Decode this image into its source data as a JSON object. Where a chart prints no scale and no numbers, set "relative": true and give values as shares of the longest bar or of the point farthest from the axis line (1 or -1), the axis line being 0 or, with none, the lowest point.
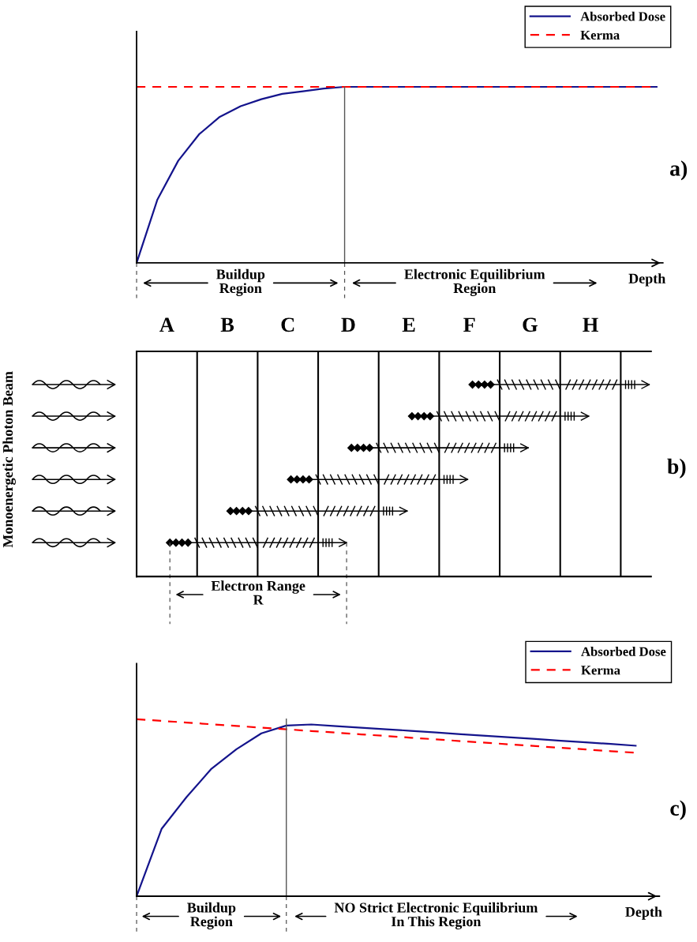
{
  "chart_data": [
    {
      "type": "line",
      "relative": true,
      "tick_labels": false,
      "xlabel": "Depth",
      "legend": "top right",
      "categories": [
        null,
        null,
        null,
        null,
        null,
        null,
        null,
        null,
        null,
        null,
        null,
        null,
        null,
        null,
        null,
        null,
        null,
        null,
        null,
        null,
        null,
        null,
        null,
        null,
        null,
        null
      ],
      "series": [
        {
          "name": "Absorbed Dose",
          "color": "#14148c",
          "line_style": "solid",
          "values": [
            0,
            0.36,
            0.58,
            0.73,
            0.83,
            0.89,
            0.93,
            0.96,
            0.975,
            0.99,
            1,
            1,
            1,
            1,
            1,
            1,
            1,
            1,
            1,
            1,
            1,
            1,
            1,
            1,
            1,
            1
          ]
        },
        {
          "name": "Kerma",
          "color": "#ff0000",
          "line_style": "dashed",
          "values": [
            1,
            1,
            1,
            1,
            1,
            1,
            1,
            1,
            1,
            1,
            1,
            1,
            1,
            1,
            1,
            1,
            1,
            1,
            1,
            1,
            1,
            1,
            1,
            1,
            1,
            1
          ]
        }
      ],
      "annotations": [
        "Buildup\nRegion",
        "Electronic Equilibrium\nRegion",
        "a)"
      ]
    },
    {
      "type": "other",
      "ylabel": "Monoenergetic Photon Beam",
      "categories": [
        "A",
        "B",
        "C",
        "D",
        "E",
        "F",
        "G",
        "H"
      ],
      "annotations": [
        "Electron Range\nR",
        "b)"
      ]
    },
    {
      "type": "line",
      "relative": true,
      "tick_labels": false,
      "xlabel": "Depth",
      "legend": "top right",
      "categories": [
        null,
        null,
        null,
        null,
        null,
        null,
        null,
        null,
        null,
        null,
        null,
        null,
        null,
        null,
        null,
        null,
        null,
        null,
        null,
        null,
        null
      ],
      "series": [
        {
          "name": "Absorbed Dose",
          "color": "#14148c",
          "line_style": "solid",
          "values": [
            0,
            0.38,
            0.56,
            0.72,
            0.83,
            0.92,
            0.964,
            0.97,
            0.961,
            0.952,
            0.943,
            0.934,
            0.925,
            0.915,
            0.906,
            0.897,
            0.888,
            0.878,
            0.869,
            0.86,
            0.85
          ]
        },
        {
          "name": "Kerma",
          "color": "#ff0000",
          "line_style": "dashed",
          "values": [
            1,
            0.99,
            0.981,
            0.971,
            0.962,
            0.952,
            0.943,
            0.933,
            0.924,
            0.914,
            0.905,
            0.895,
            0.886,
            0.876,
            0.867,
            0.857,
            0.848,
            0.838,
            0.829,
            0.819,
            0.81
          ]
        }
      ],
      "annotations": [
        "Buildup\nRegion",
        "NO Strict Electronic Equilibrium\nIn This Region",
        "c)"
      ]
    }
  ]
}
